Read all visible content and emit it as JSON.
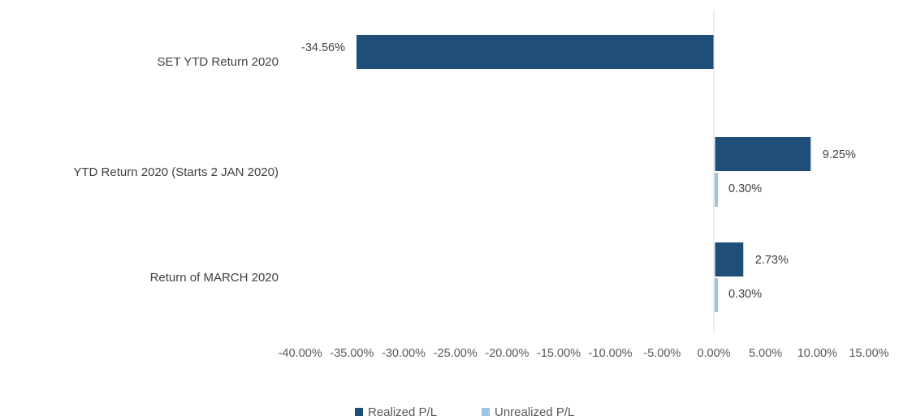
{
  "chart_data": {
    "type": "bar",
    "orientation": "horizontal",
    "categories": [
      "Return of MARCH 2020",
      "YTD Return 2020 (Starts 2 JAN 2020)",
      "SET YTD Return 2020"
    ],
    "series": [
      {
        "name": "Realized P/L",
        "color": "#1f4e79",
        "values": [
          2.73,
          9.25,
          -34.56
        ],
        "labels": [
          "2.73%",
          "9.25%",
          "-34.56%"
        ]
      },
      {
        "name": "Unrealized P/L",
        "color": "#9dc3e6",
        "values": [
          0.3,
          0.3,
          null
        ],
        "labels": [
          "0.30%",
          "0.30%",
          null
        ]
      }
    ],
    "xlim": [
      -40,
      15
    ],
    "ticks": [
      -40,
      -35,
      -30,
      -25,
      -20,
      -15,
      -10,
      -5,
      0,
      5,
      10,
      15
    ],
    "tick_labels": [
      "-40.00%",
      "-35.00%",
      "-30.00%",
      "-25.00%",
      "-20.00%",
      "-15.00%",
      "-10.00%",
      "-5.00%",
      "0.00%",
      "5.00%",
      "10.00%",
      "15.00%"
    ],
    "title": "",
    "xlabel": "",
    "ylabel": "",
    "grid": false,
    "legend": "bottom"
  }
}
